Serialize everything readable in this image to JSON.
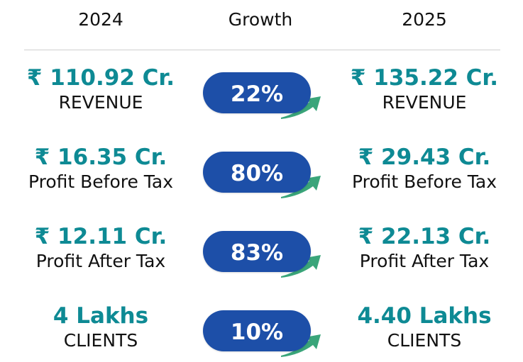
{
  "headers": {
    "left": "2024",
    "middle": "Growth",
    "right": "2025"
  },
  "rows": [
    {
      "left_value": "₹ 110.92 Cr.",
      "left_label": "REVENUE",
      "growth": "22%",
      "right_value": "₹ 135.22 Cr.",
      "right_label": "REVENUE"
    },
    {
      "left_value": "₹ 16.35 Cr.",
      "left_label": "Profit Before Tax",
      "growth": "80%",
      "right_value": "₹ 29.43 Cr.",
      "right_label": "Profit Before Tax"
    },
    {
      "left_value": "₹ 12.11 Cr.",
      "left_label": "Profit After Tax",
      "growth": "83%",
      "right_value": "₹ 22.13 Cr.",
      "right_label": "Profit After Tax"
    },
    {
      "left_value": "4 Lakhs",
      "left_label": "CLIENTS",
      "growth": "10%",
      "right_value": "4.40 Lakhs",
      "right_label": "CLIENTS"
    }
  ],
  "colors": {
    "value_text": "#0e8a94",
    "pill_background": "#1d4fa8",
    "arrow": "#3aa57a",
    "divider": "#cfcfcf"
  },
  "icons": {
    "growth_arrow": "trend-up-arrow-icon"
  }
}
